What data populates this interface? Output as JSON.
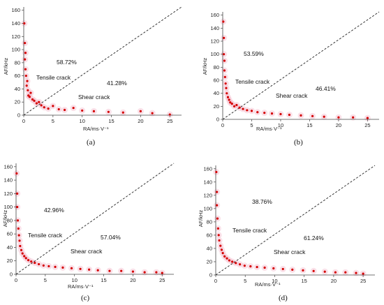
{
  "colors": {
    "points": "#d40000",
    "halo": "#f2a5bd",
    "axis": "#444444",
    "divider": "#222222"
  },
  "panels": [
    {
      "label": "(a)",
      "xlabel": "RA/ms·V⁻¹",
      "ylabel": "AF/kHz",
      "tensile_pct": "58.72%",
      "shear_pct": "41.28%",
      "tensile_text": "Tensile crack",
      "shear_text": "Shear crack"
    },
    {
      "label": "(b)",
      "xlabel": "RA/ms·V⁻¹",
      "ylabel": "AF/kHz",
      "tensile_pct": "53.59%",
      "shear_pct": "46.41%",
      "tensile_text": "Tensile crack",
      "shear_text": "Shear crack"
    },
    {
      "label": "(c)",
      "xlabel": "RA/ms·V⁻¹",
      "ylabel": "AF/kHz",
      "tensile_pct": "42.96%",
      "shear_pct": "57.04%",
      "tensile_text": "Tensile crack",
      "shear_text": "Shear crack"
    },
    {
      "label": "(d)",
      "xlabel": "RA/ms·V⁻¹",
      "ylabel": "AF/kHz",
      "tensile_pct": "38.76%",
      "shear_pct": "61.24%",
      "tensile_text": "Tensile crack",
      "shear_text": "Shear crack"
    }
  ],
  "chart_data": [
    {
      "type": "scatter",
      "panel": "(a)",
      "xlabel": "RA/ms·V⁻¹",
      "ylabel": "AF/kHz",
      "xlim": [
        0,
        27
      ],
      "ylim": [
        0,
        165
      ],
      "xticks": [
        0,
        5,
        10,
        15,
        20,
        25
      ],
      "yticks": [
        0,
        20,
        40,
        60,
        80,
        100,
        120,
        140,
        160
      ],
      "divider_line": {
        "from": [
          0,
          0
        ],
        "to": [
          27,
          165
        ]
      },
      "annotations": [
        "58.72%",
        "41.28%",
        "Tensile crack",
        "Shear crack"
      ],
      "series": [
        {
          "x": [
            0.1,
            0.2,
            0.2,
            0.3,
            0.3,
            0.4,
            0.5,
            0.6,
            0.7,
            0.8,
            1.0,
            1.2,
            1.5,
            1.8,
            2.2,
            2.6,
            3.0,
            3.5,
            4.2,
            5.0,
            6.0,
            7.0,
            8.5,
            10.0,
            12.0,
            14.5,
            17.0,
            20.0,
            22.0,
            25.0
          ],
          "y": [
            140,
            110,
            85,
            95,
            70,
            60,
            45,
            52,
            38,
            30,
            28,
            34,
            24,
            22,
            18,
            20,
            15,
            12,
            10,
            14,
            9,
            8,
            11,
            7,
            6,
            5,
            4,
            6,
            3,
            1
          ]
        }
      ]
    },
    {
      "type": "scatter",
      "panel": "(b)",
      "xlabel": "RA/ms·V⁻¹",
      "ylabel": "AF/kHz",
      "xlim": [
        0,
        27
      ],
      "ylim": [
        0,
        165
      ],
      "xticks": [
        0,
        5,
        10,
        15,
        20,
        25
      ],
      "yticks": [
        0,
        20,
        40,
        60,
        80,
        100,
        120,
        140,
        160
      ],
      "divider_line": {
        "from": [
          0,
          0
        ],
        "to": [
          27,
          165
        ]
      },
      "annotations": [
        "53.59%",
        "46.41%",
        "Tensile crack",
        "Shear crack"
      ],
      "series": [
        {
          "x": [
            0.1,
            0.2,
            0.2,
            0.3,
            0.3,
            0.4,
            0.5,
            0.6,
            0.7,
            0.9,
            1.1,
            1.3,
            1.6,
            2.0,
            2.4,
            2.9,
            3.5,
            4.2,
            5.0,
            6.0,
            7.2,
            8.5,
            10.0,
            11.5,
            13.5,
            15.5,
            17.5,
            20.0,
            22.5,
            25.0
          ],
          "y": [
            150,
            125,
            100,
            90,
            75,
            65,
            55,
            48,
            40,
            34,
            30,
            26,
            24,
            20,
            22,
            18,
            16,
            14,
            13,
            11,
            10,
            9,
            8,
            7,
            6,
            5,
            4,
            3,
            3,
            2
          ]
        }
      ]
    },
    {
      "type": "scatter",
      "panel": "(c)",
      "xlabel": "RA/ms·V⁻¹",
      "ylabel": "AF/kHz",
      "xlim": [
        0,
        27
      ],
      "ylim": [
        0,
        165
      ],
      "xticks": [
        0,
        5,
        10,
        15,
        20,
        25
      ],
      "yticks": [
        0,
        20,
        40,
        60,
        80,
        100,
        120,
        140,
        160
      ],
      "divider_line": {
        "from": [
          0,
          0
        ],
        "to": [
          27,
          165
        ]
      },
      "annotations": [
        "42.96%",
        "57.04%",
        "Tensile crack",
        "Shear crack"
      ],
      "series": [
        {
          "x": [
            0.1,
            0.2,
            0.2,
            0.3,
            0.4,
            0.5,
            0.6,
            0.7,
            0.9,
            1.1,
            1.4,
            1.7,
            2.1,
            2.6,
            3.2,
            3.9,
            4.7,
            5.6,
            6.7,
            8.0,
            9.5,
            11.0,
            12.5,
            14.0,
            16.0,
            18.0,
            20.0,
            22.0,
            24.0,
            25.0
          ],
          "y": [
            150,
            120,
            100,
            80,
            68,
            58,
            50,
            42,
            36,
            31,
            27,
            24,
            21,
            19,
            17,
            15,
            13,
            12,
            11,
            10,
            9,
            8,
            7,
            6,
            5,
            5,
            4,
            3,
            3,
            2
          ]
        }
      ]
    },
    {
      "type": "scatter",
      "panel": "(d)",
      "xlabel": "RA/ms·V⁻¹",
      "ylabel": "AF/kHz",
      "xlim": [
        0,
        27
      ],
      "ylim": [
        0,
        165
      ],
      "xticks": [
        0,
        5,
        10,
        15,
        20,
        25
      ],
      "yticks": [
        0,
        20,
        40,
        60,
        80,
        100,
        120,
        140,
        160
      ],
      "divider_line": {
        "from": [
          0,
          0
        ],
        "to": [
          27,
          165
        ]
      },
      "annotations": [
        "38.76%",
        "61.24%",
        "Tensile crack",
        "Shear crack"
      ],
      "series": [
        {
          "x": [
            0.1,
            0.2,
            0.2,
            0.3,
            0.4,
            0.5,
            0.6,
            0.8,
            1.0,
            1.2,
            1.5,
            1.9,
            2.3,
            2.8,
            3.4,
            4.1,
            4.9,
            5.9,
            7.0,
            8.3,
            9.8,
            11.4,
            13.0,
            14.8,
            16.6,
            18.5,
            20.3,
            22.0,
            23.8,
            25.0
          ],
          "y": [
            155,
            125,
            105,
            85,
            70,
            60,
            52,
            44,
            38,
            33,
            28,
            25,
            22,
            20,
            18,
            16,
            14,
            13,
            12,
            11,
            10,
            9,
            8,
            7,
            6,
            5,
            4,
            4,
            3,
            2
          ]
        }
      ]
    }
  ]
}
